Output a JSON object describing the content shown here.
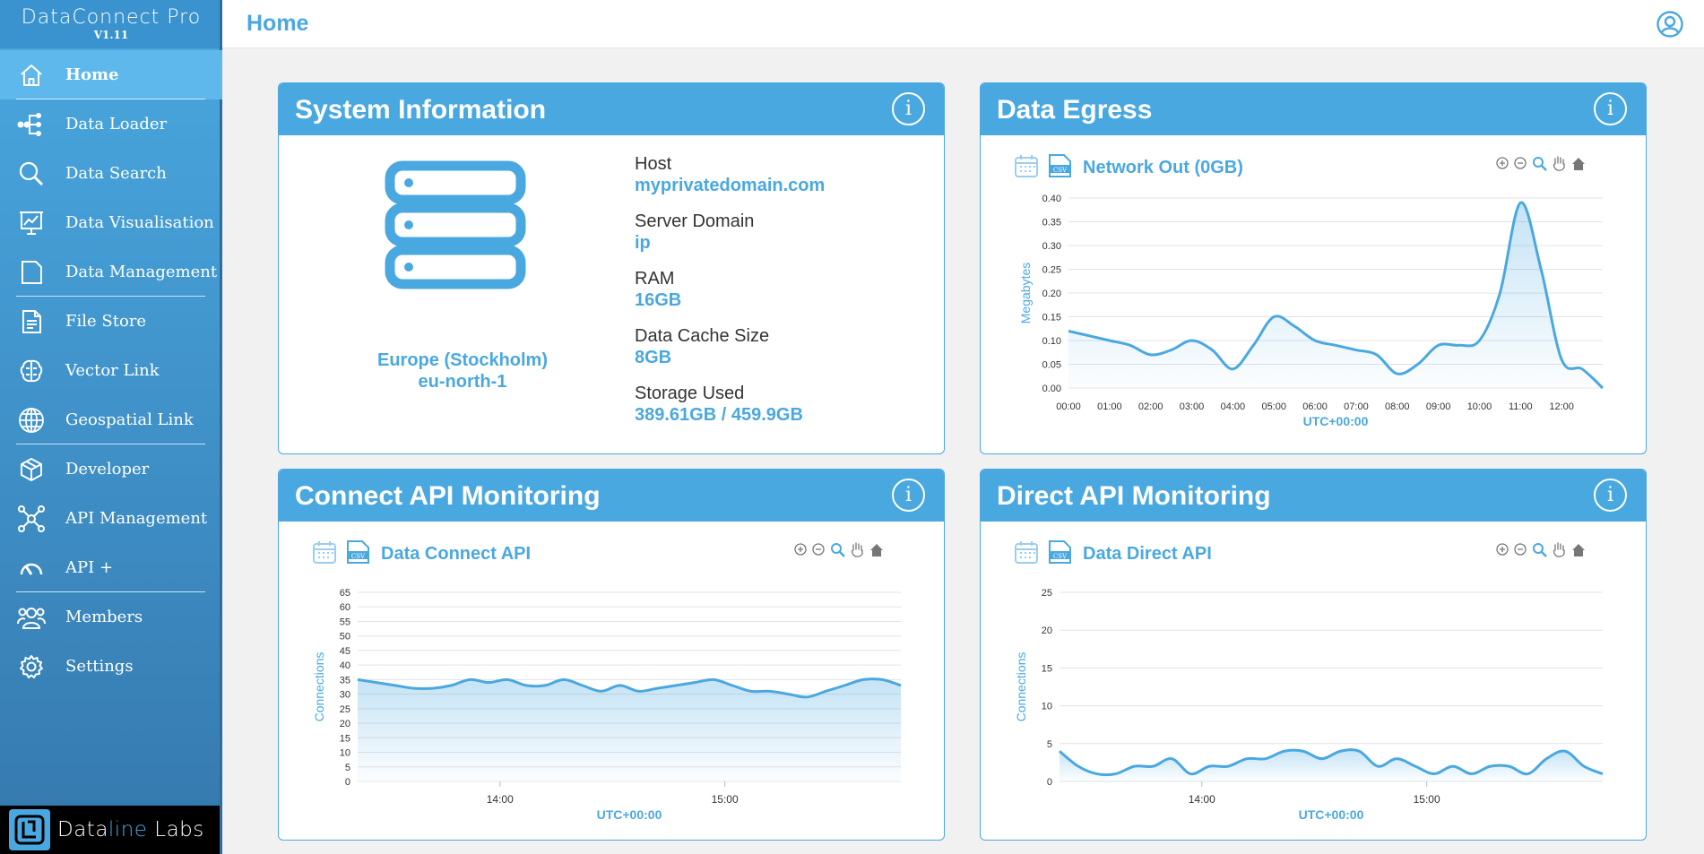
{
  "app": {
    "name": "DataConnect Pro",
    "version": "V1.11"
  },
  "header": {
    "title": "Home"
  },
  "sidebar": {
    "items": [
      {
        "label": "Home",
        "icon": "home-icon"
      },
      {
        "label": "Data Loader",
        "icon": "data-loader-icon"
      },
      {
        "label": "Data Search",
        "icon": "search-icon"
      },
      {
        "label": "Data Visualisation",
        "icon": "visualisation-icon"
      },
      {
        "label": "Data Management",
        "icon": "folder-icon"
      },
      {
        "label": "File Store",
        "icon": "file-icon"
      },
      {
        "label": "Vector Link",
        "icon": "brain-icon"
      },
      {
        "label": "Geospatial Link",
        "icon": "globe-icon"
      },
      {
        "label": "Developer",
        "icon": "cube-icon"
      },
      {
        "label": "API Management",
        "icon": "network-icon"
      },
      {
        "label": "API +",
        "icon": "gauge-icon"
      },
      {
        "label": "Members",
        "icon": "members-icon"
      },
      {
        "label": "Settings",
        "icon": "gear-icon"
      }
    ]
  },
  "footer": {
    "brand_pre": "Data",
    "brand_hl": "line",
    "brand_post": " Labs"
  },
  "system": {
    "title": "System Information",
    "info": "i",
    "region_name": "Europe (Stockholm)",
    "region_code": "eu-north-1",
    "host_label": "Host",
    "host_value": "myprivatedomain.com",
    "domain_label": "Server Domain",
    "domain_value": "ip",
    "ram_label": "RAM",
    "ram_value": "16GB",
    "cache_label": "Data Cache Size",
    "cache_value": "8GB",
    "storage_label": "Storage Used",
    "storage_value": "389.61GB / 459.9GB"
  },
  "egress": {
    "title": "Data Egress",
    "info": "i"
  },
  "connect": {
    "title": "Connect API Monitoring",
    "info": "i"
  },
  "direct": {
    "title": "Direct API Monitoring",
    "info": "i"
  },
  "colors": {
    "accent": "#4aa8e0",
    "line": "#4aa8e0",
    "sidebar_dark": "#3578ad"
  },
  "chart_data": [
    {
      "id": "egress",
      "type": "area",
      "title": "Network Out (0GB)",
      "xlabel": "UTC+00:00",
      "ylabel": "Megabytes",
      "x": [
        0,
        0.5,
        1,
        1.5,
        2,
        2.5,
        3,
        3.5,
        4,
        4.5,
        5,
        5.5,
        6,
        6.5,
        7,
        7.5,
        8,
        8.5,
        9,
        9.5,
        10,
        10.5,
        11,
        11.5,
        12,
        12.5,
        13
      ],
      "values": [
        0.12,
        0.11,
        0.1,
        0.09,
        0.07,
        0.08,
        0.1,
        0.08,
        0.04,
        0.09,
        0.15,
        0.13,
        0.1,
        0.09,
        0.08,
        0.07,
        0.03,
        0.05,
        0.09,
        0.09,
        0.1,
        0.2,
        0.39,
        0.25,
        0.06,
        0.04,
        0.0
      ],
      "xticks": [
        "00:00",
        "01:00",
        "02:00",
        "03:00",
        "04:00",
        "05:00",
        "06:00",
        "07:00",
        "08:00",
        "09:00",
        "10:00",
        "11:00",
        "12:00"
      ],
      "yticks": [
        "0.00",
        "0.05",
        "0.10",
        "0.15",
        "0.20",
        "0.25",
        "0.30",
        "0.35",
        "0.40"
      ],
      "ylim": [
        0,
        0.4
      ],
      "xlim": [
        0,
        13
      ]
    },
    {
      "id": "connect",
      "type": "area",
      "title": "Data Connect API",
      "xlabel": "UTC+00:00",
      "ylabel": "Connections",
      "values": [
        35,
        34,
        33,
        32,
        32,
        33,
        35,
        34,
        35,
        33,
        33,
        35,
        33,
        31,
        33,
        31,
        32,
        33,
        34,
        35,
        33,
        31,
        31,
        30,
        29,
        31,
        33,
        35,
        35,
        33
      ],
      "xticks": [
        {
          "label": "14:00",
          "pos": 0.262
        },
        {
          "label": "15:00",
          "pos": 0.676
        }
      ],
      "yticks": [
        "0",
        "5",
        "10",
        "15",
        "20",
        "25",
        "30",
        "35",
        "40",
        "45",
        "50",
        "55",
        "60",
        "65"
      ],
      "ylim": [
        0,
        65
      ]
    },
    {
      "id": "direct",
      "type": "area",
      "title": "Data Direct API",
      "xlabel": "UTC+00:00",
      "ylabel": "Connections",
      "values": [
        4,
        2,
        1,
        1,
        2,
        2,
        3,
        1,
        2,
        2,
        3,
        3,
        4,
        4,
        3,
        4,
        4,
        2,
        3,
        2,
        1,
        2,
        1,
        2,
        2,
        1,
        3,
        4,
        2,
        1
      ],
      "xticks": [
        {
          "label": "14:00",
          "pos": 0.262
        },
        {
          "label": "15:00",
          "pos": 0.676
        }
      ],
      "yticks": [
        "0",
        "5",
        "10",
        "15",
        "20",
        "25"
      ],
      "ylim": [
        0,
        25
      ]
    }
  ]
}
